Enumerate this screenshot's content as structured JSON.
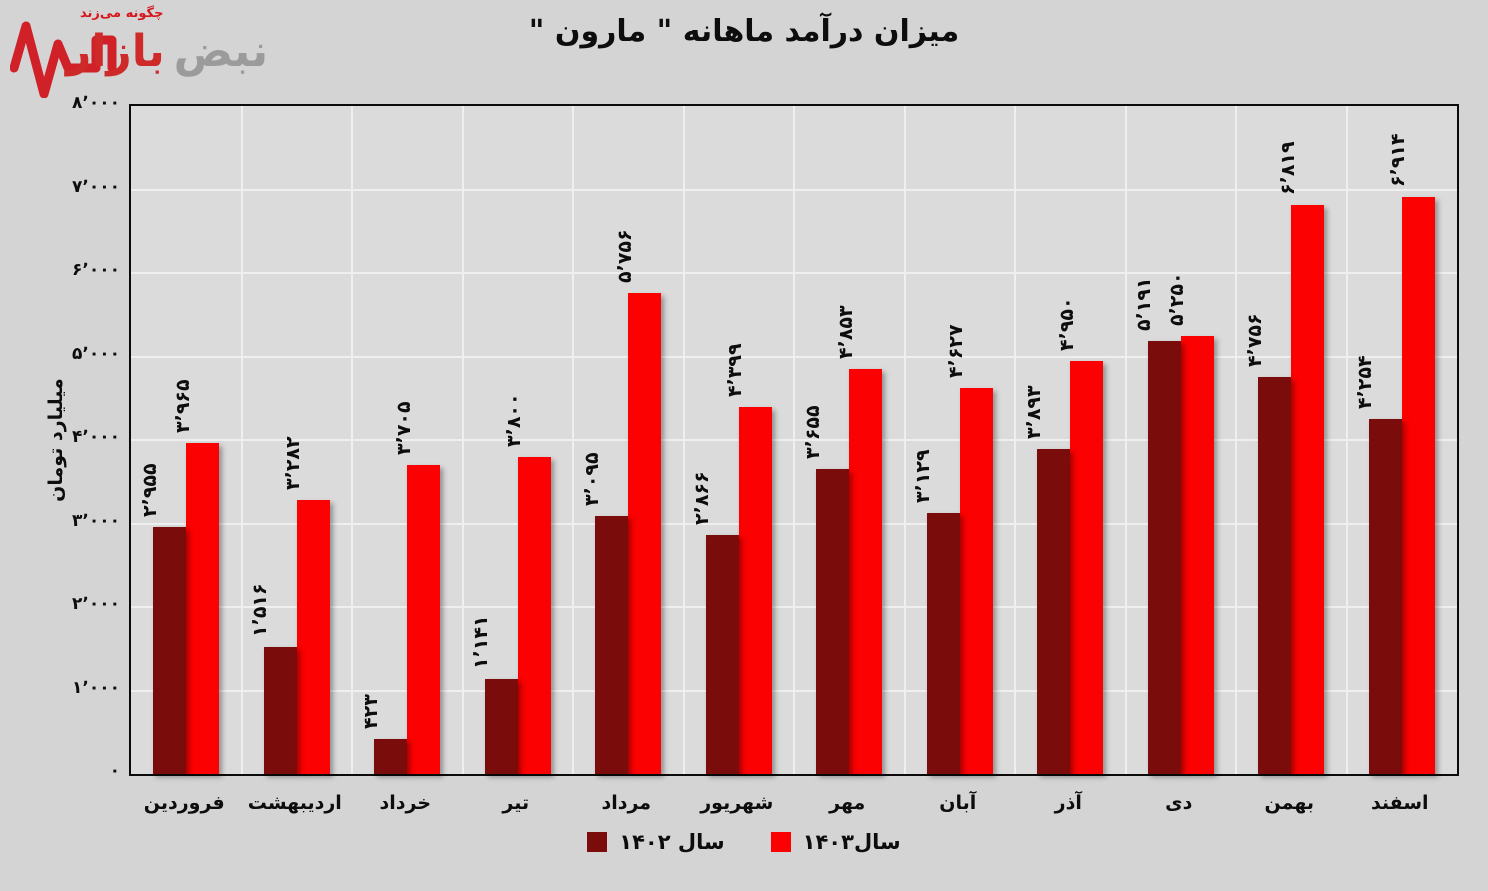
{
  "logo": {
    "tagline": "چگونه می‌زند",
    "brand_part1": "نبض",
    "brand_part2": "بازار"
  },
  "title": "میزان درآمد ماهانه \" مارون \"",
  "y_axis": {
    "title": "میلیارد تومان",
    "ticks_fa": [
      "۰",
      "۱٬۰۰۰",
      "۲٬۰۰۰",
      "۳٬۰۰۰",
      "۴٬۰۰۰",
      "۵٬۰۰۰",
      "۶٬۰۰۰",
      "۷٬۰۰۰",
      "۸٬۰۰۰"
    ]
  },
  "legend": {
    "items": [
      {
        "label": "سال ۱۴۰۲",
        "color": "#7a0c0c"
      },
      {
        "label": "سال۱۴۰۳",
        "color": "#fb0101"
      }
    ]
  },
  "chart_data": {
    "type": "bar",
    "title": "میزان درآمد ماهانه \" مارون \"",
    "xlabel": "",
    "ylabel": "میلیارد تومان",
    "ylim": [
      0,
      8000
    ],
    "ytick_step": 1000,
    "grid": true,
    "legend_position": "bottom",
    "categories": [
      "فروردین",
      "اردیبهشت",
      "خرداد",
      "تیر",
      "مرداد",
      "شهریور",
      "مهر",
      "آبان",
      "آذر",
      "دی",
      "بهمن",
      "اسفند"
    ],
    "series": [
      {
        "name": "سال ۱۴۰۲",
        "color": "#7a0c0c",
        "values": [
          2955,
          1516,
          423,
          1141,
          3095,
          2866,
          3655,
          3129,
          3893,
          5191,
          4756,
          4254
        ],
        "labels_fa": [
          "۲٬۹۵۵",
          "۱٬۵۱۶",
          "۴۲۳",
          "۱٬۱۴۱",
          "۳٬۰۹۵",
          "۲٬۸۶۶",
          "۳٬۶۵۵",
          "۳٬۱۲۹",
          "۳٬۸۹۳",
          "۵٬۱۹۱",
          "۴٬۷۵۶",
          "۴٬۲۵۴"
        ]
      },
      {
        "name": "سال۱۴۰۳",
        "color": "#fb0101",
        "values": [
          3965,
          3282,
          3705,
          3800,
          5756,
          4399,
          4853,
          4627,
          4950,
          5250,
          6819,
          6914
        ],
        "labels_fa": [
          "۳٬۹۶۵",
          "۳٬۲۸۲",
          "۳٬۷۰۵",
          "۳٬۸۰۰",
          "۵٬۷۵۶",
          "۴٬۳۹۹",
          "۴٬۸۵۳",
          "۴٬۶۲۷",
          "۴٬۹۵۰",
          "۵٬۲۵۰",
          "۶٬۸۱۹",
          "۶٬۹۱۴"
        ]
      }
    ]
  }
}
